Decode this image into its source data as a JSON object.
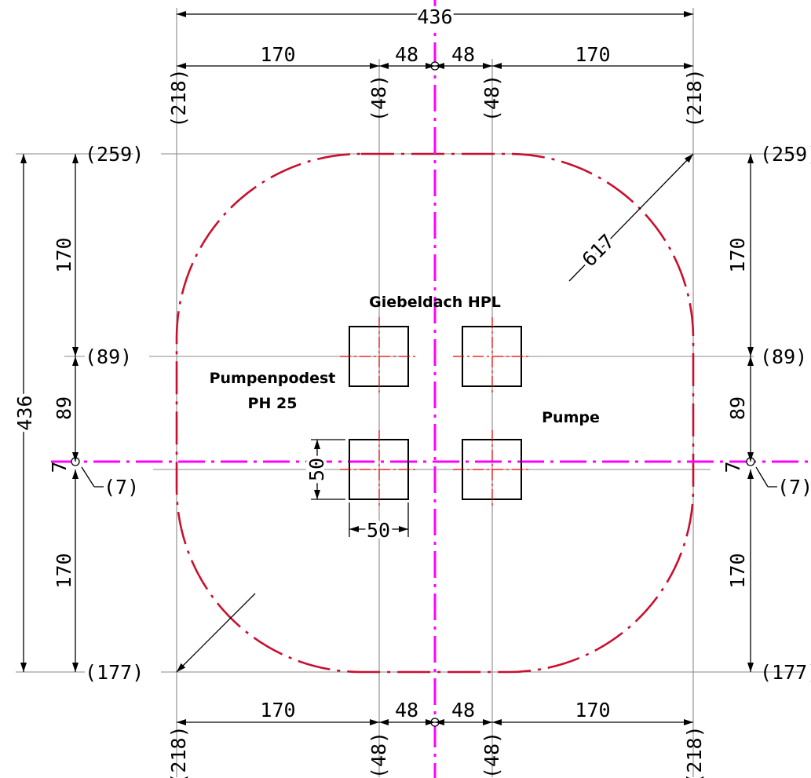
{
  "colors": {
    "outline": "#c8102e",
    "symmetry_axis": "#ff00ff",
    "center_lines": "#e00000",
    "dimension_lines": "#000000",
    "helper_lines": "#8a8a8a"
  },
  "dimensions": {
    "overall_width": "436",
    "overall_height": "436",
    "segment_170": "170",
    "segment_48": "48",
    "segment_89": "89",
    "segment_7": "7",
    "box_height": "50",
    "box_width": "50",
    "radius": "617"
  },
  "coords": {
    "x_left": "(218)",
    "x_inner_left": "(48)",
    "x_inner_right": "(48)",
    "x_right": "(218)",
    "y_top": "(259)",
    "y_89": "(89)",
    "y_7": "(7)",
    "y_bottom": "(177)"
  },
  "labels": {
    "roof": "Giebeldach HPL",
    "platform_line1": "Pumpenpodest",
    "platform_line2": "PH 25",
    "pump": "Pumpe"
  }
}
